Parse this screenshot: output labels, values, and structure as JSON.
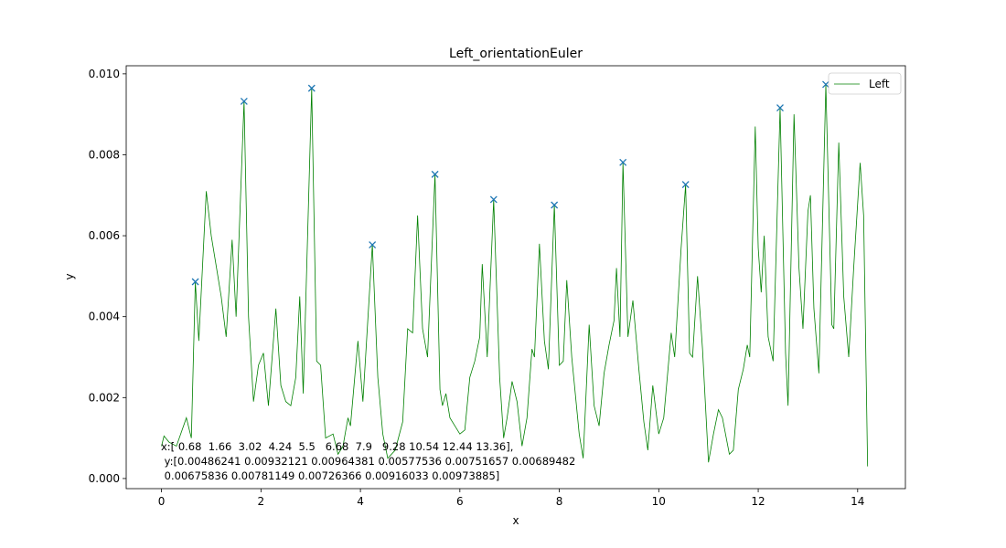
{
  "chart_data": {
    "type": "line",
    "title": "Left_orientationEuler",
    "xlabel": "x",
    "ylabel": "y",
    "xlim": [
      -0.71,
      14.96
    ],
    "ylim": [
      -0.00025,
      0.0102
    ],
    "xticks": [
      0,
      2,
      4,
      6,
      8,
      10,
      12,
      14
    ],
    "yticks": [
      {
        "value": 0,
        "label": "0.000"
      },
      {
        "value": 0.002,
        "label": "0.002"
      },
      {
        "value": 0.004,
        "label": "0.004"
      },
      {
        "value": 0.006,
        "label": "0.006"
      },
      {
        "value": 0.008,
        "label": "0.008"
      },
      {
        "value": 0.01,
        "label": "0.010"
      }
    ],
    "legend": "upper right",
    "series": [
      {
        "name": "Left",
        "color": "#008000",
        "x": [
          0.0,
          0.05,
          0.15,
          0.3,
          0.5,
          0.6,
          0.68,
          0.75,
          0.9,
          1.0,
          1.2,
          1.3,
          1.42,
          1.5,
          1.66,
          1.75,
          1.85,
          1.95,
          2.05,
          2.15,
          2.3,
          2.4,
          2.5,
          2.6,
          2.7,
          2.78,
          2.85,
          3.02,
          3.12,
          3.2,
          3.3,
          3.45,
          3.55,
          3.65,
          3.75,
          3.8,
          3.95,
          4.05,
          4.24,
          4.35,
          4.45,
          4.55,
          4.7,
          4.85,
          4.95,
          5.05,
          5.15,
          5.25,
          5.35,
          5.5,
          5.6,
          5.65,
          5.72,
          5.8,
          5.9,
          6.0,
          6.1,
          6.2,
          6.3,
          6.4,
          6.45,
          6.55,
          6.68,
          6.8,
          6.88,
          6.95,
          7.05,
          7.15,
          7.25,
          7.35,
          7.45,
          7.5,
          7.6,
          7.7,
          7.78,
          7.9,
          8.0,
          8.08,
          8.15,
          8.25,
          8.4,
          8.48,
          8.6,
          8.7,
          8.8,
          8.9,
          9.0,
          9.1,
          9.15,
          9.22,
          9.28,
          9.38,
          9.48,
          9.6,
          9.7,
          9.78,
          9.88,
          10.0,
          10.1,
          10.25,
          10.32,
          10.45,
          10.54,
          10.62,
          10.68,
          10.78,
          10.88,
          11.0,
          11.1,
          11.2,
          11.28,
          11.42,
          11.5,
          11.6,
          11.7,
          11.78,
          11.83,
          11.94,
          12.0,
          12.06,
          12.12,
          12.2,
          12.3,
          12.44,
          12.55,
          12.6,
          12.72,
          12.82,
          12.9,
          13.0,
          13.05,
          13.12,
          13.22,
          13.36,
          13.48,
          13.52,
          13.62,
          13.72,
          13.82,
          13.92,
          14.05,
          14.12,
          14.2
        ],
        "values": [
          0.0008,
          0.00105,
          0.0009,
          0.0008,
          0.0015,
          0.001,
          0.00486,
          0.0034,
          0.0071,
          0.006,
          0.0045,
          0.0035,
          0.0059,
          0.004,
          0.00932,
          0.004,
          0.0019,
          0.0028,
          0.0031,
          0.0018,
          0.0042,
          0.0023,
          0.0019,
          0.0018,
          0.0025,
          0.0045,
          0.0021,
          0.00964,
          0.0029,
          0.0028,
          0.001,
          0.0011,
          0.0006,
          0.0008,
          0.0015,
          0.0013,
          0.0034,
          0.0019,
          0.00578,
          0.0025,
          0.0011,
          0.0005,
          0.0007,
          0.0014,
          0.0037,
          0.0036,
          0.0065,
          0.0037,
          0.003,
          0.00752,
          0.0022,
          0.0018,
          0.0021,
          0.0015,
          0.0013,
          0.0011,
          0.0012,
          0.0025,
          0.0029,
          0.0035,
          0.0053,
          0.003,
          0.00689,
          0.0025,
          0.001,
          0.0015,
          0.0024,
          0.0019,
          0.0008,
          0.0015,
          0.0032,
          0.003,
          0.0058,
          0.0034,
          0.0027,
          0.00676,
          0.0028,
          0.0029,
          0.0049,
          0.003,
          0.0011,
          0.0005,
          0.0038,
          0.0018,
          0.0013,
          0.0026,
          0.0033,
          0.0039,
          0.0052,
          0.0035,
          0.00781,
          0.0035,
          0.0044,
          0.0027,
          0.0014,
          0.0007,
          0.0023,
          0.0011,
          0.0015,
          0.0036,
          0.003,
          0.0057,
          0.00726,
          0.0031,
          0.003,
          0.005,
          0.0032,
          0.0004,
          0.0011,
          0.0017,
          0.0015,
          0.0006,
          0.0007,
          0.0022,
          0.0027,
          0.0033,
          0.003,
          0.0087,
          0.0057,
          0.0046,
          0.006,
          0.0035,
          0.0029,
          0.00916,
          0.0031,
          0.0018,
          0.009,
          0.0052,
          0.0037,
          0.0066,
          0.007,
          0.0042,
          0.0026,
          0.00974,
          0.0038,
          0.0037,
          0.0083,
          0.0045,
          0.003,
          0.0052,
          0.0078,
          0.0065,
          0.0003
        ]
      }
    ],
    "markers": {
      "type": "scatter",
      "color": "#1f77b4",
      "x": [
        0.68,
        1.66,
        3.02,
        4.24,
        5.5,
        6.68,
        7.9,
        9.28,
        10.54,
        12.44,
        13.36
      ],
      "values": [
        0.00486241,
        0.00932121,
        0.00964381,
        0.00577536,
        0.00751657,
        0.00689482,
        0.00675836,
        0.00781149,
        0.00726366,
        0.00916033,
        0.00973885
      ]
    },
    "annotation": [
      "x:[ 0.68  1.66  3.02  4.24  5.5   6.68  7.9   9.28 10.54 12.44 13.36],",
      " y:[0.00486241 0.00932121 0.00964381 0.00577536 0.00751657 0.00689482",
      " 0.00675836 0.00781149 0.00726366 0.00916033 0.00973885]"
    ]
  }
}
